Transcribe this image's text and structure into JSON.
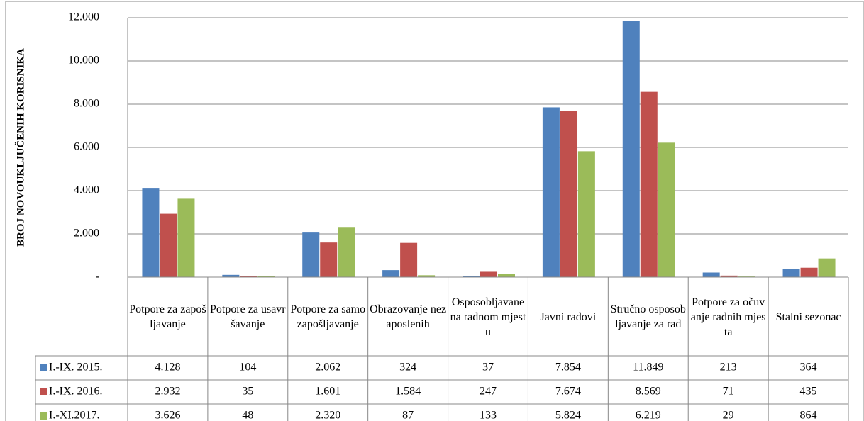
{
  "chart_data": {
    "type": "bar",
    "ylabel": "BROJ NOVOUKLJUČENIH KORISNIKA",
    "categories": [
      "Potpore za zapošljavanje",
      "Potpore za usavršavanje",
      "Potpore za samozapošljavanje",
      "Obrazovanje nezaposlenih",
      "Osposobljavane na radnom mjestu",
      "Javni radovi",
      "Stručno osposobljavanje za rad",
      "Potpore za očuvanje radnih mjesta",
      "Stalni sezonac"
    ],
    "series": [
      {
        "name": "I.-IX. 2015.",
        "color": "#4f81bd",
        "values": [
          4128,
          104,
          2062,
          324,
          37,
          7854,
          11849,
          213,
          364
        ],
        "value_labels": [
          "4.128",
          "104",
          "2.062",
          "324",
          "37",
          "7.854",
          "11.849",
          "213",
          "364"
        ]
      },
      {
        "name": "I.-IX. 2016.",
        "color": "#c0504d",
        "values": [
          2932,
          35,
          1601,
          1584,
          247,
          7674,
          8569,
          71,
          435
        ],
        "value_labels": [
          "2.932",
          "35",
          "1.601",
          "1.584",
          "247",
          "7.674",
          "8.569",
          "71",
          "435"
        ]
      },
      {
        "name": "I.-XI.2017.",
        "color": "#9bbb59",
        "values": [
          3626,
          48,
          2320,
          87,
          133,
          5824,
          6219,
          29,
          864
        ],
        "value_labels": [
          "3.626",
          "48",
          "2.320",
          "87",
          "133",
          "5.824",
          "6.219",
          "29",
          "864"
        ]
      }
    ],
    "ylim": [
      0,
      12000
    ],
    "yticks": [
      {
        "value": 0,
        "label": "-"
      },
      {
        "value": 2000,
        "label": "2.000"
      },
      {
        "value": 4000,
        "label": "4.000"
      },
      {
        "value": 6000,
        "label": "6.000"
      },
      {
        "value": 8000,
        "label": "8.000"
      },
      {
        "value": 10000,
        "label": "10.000"
      },
      {
        "value": 12000,
        "label": "12.000"
      }
    ],
    "grid": true
  }
}
